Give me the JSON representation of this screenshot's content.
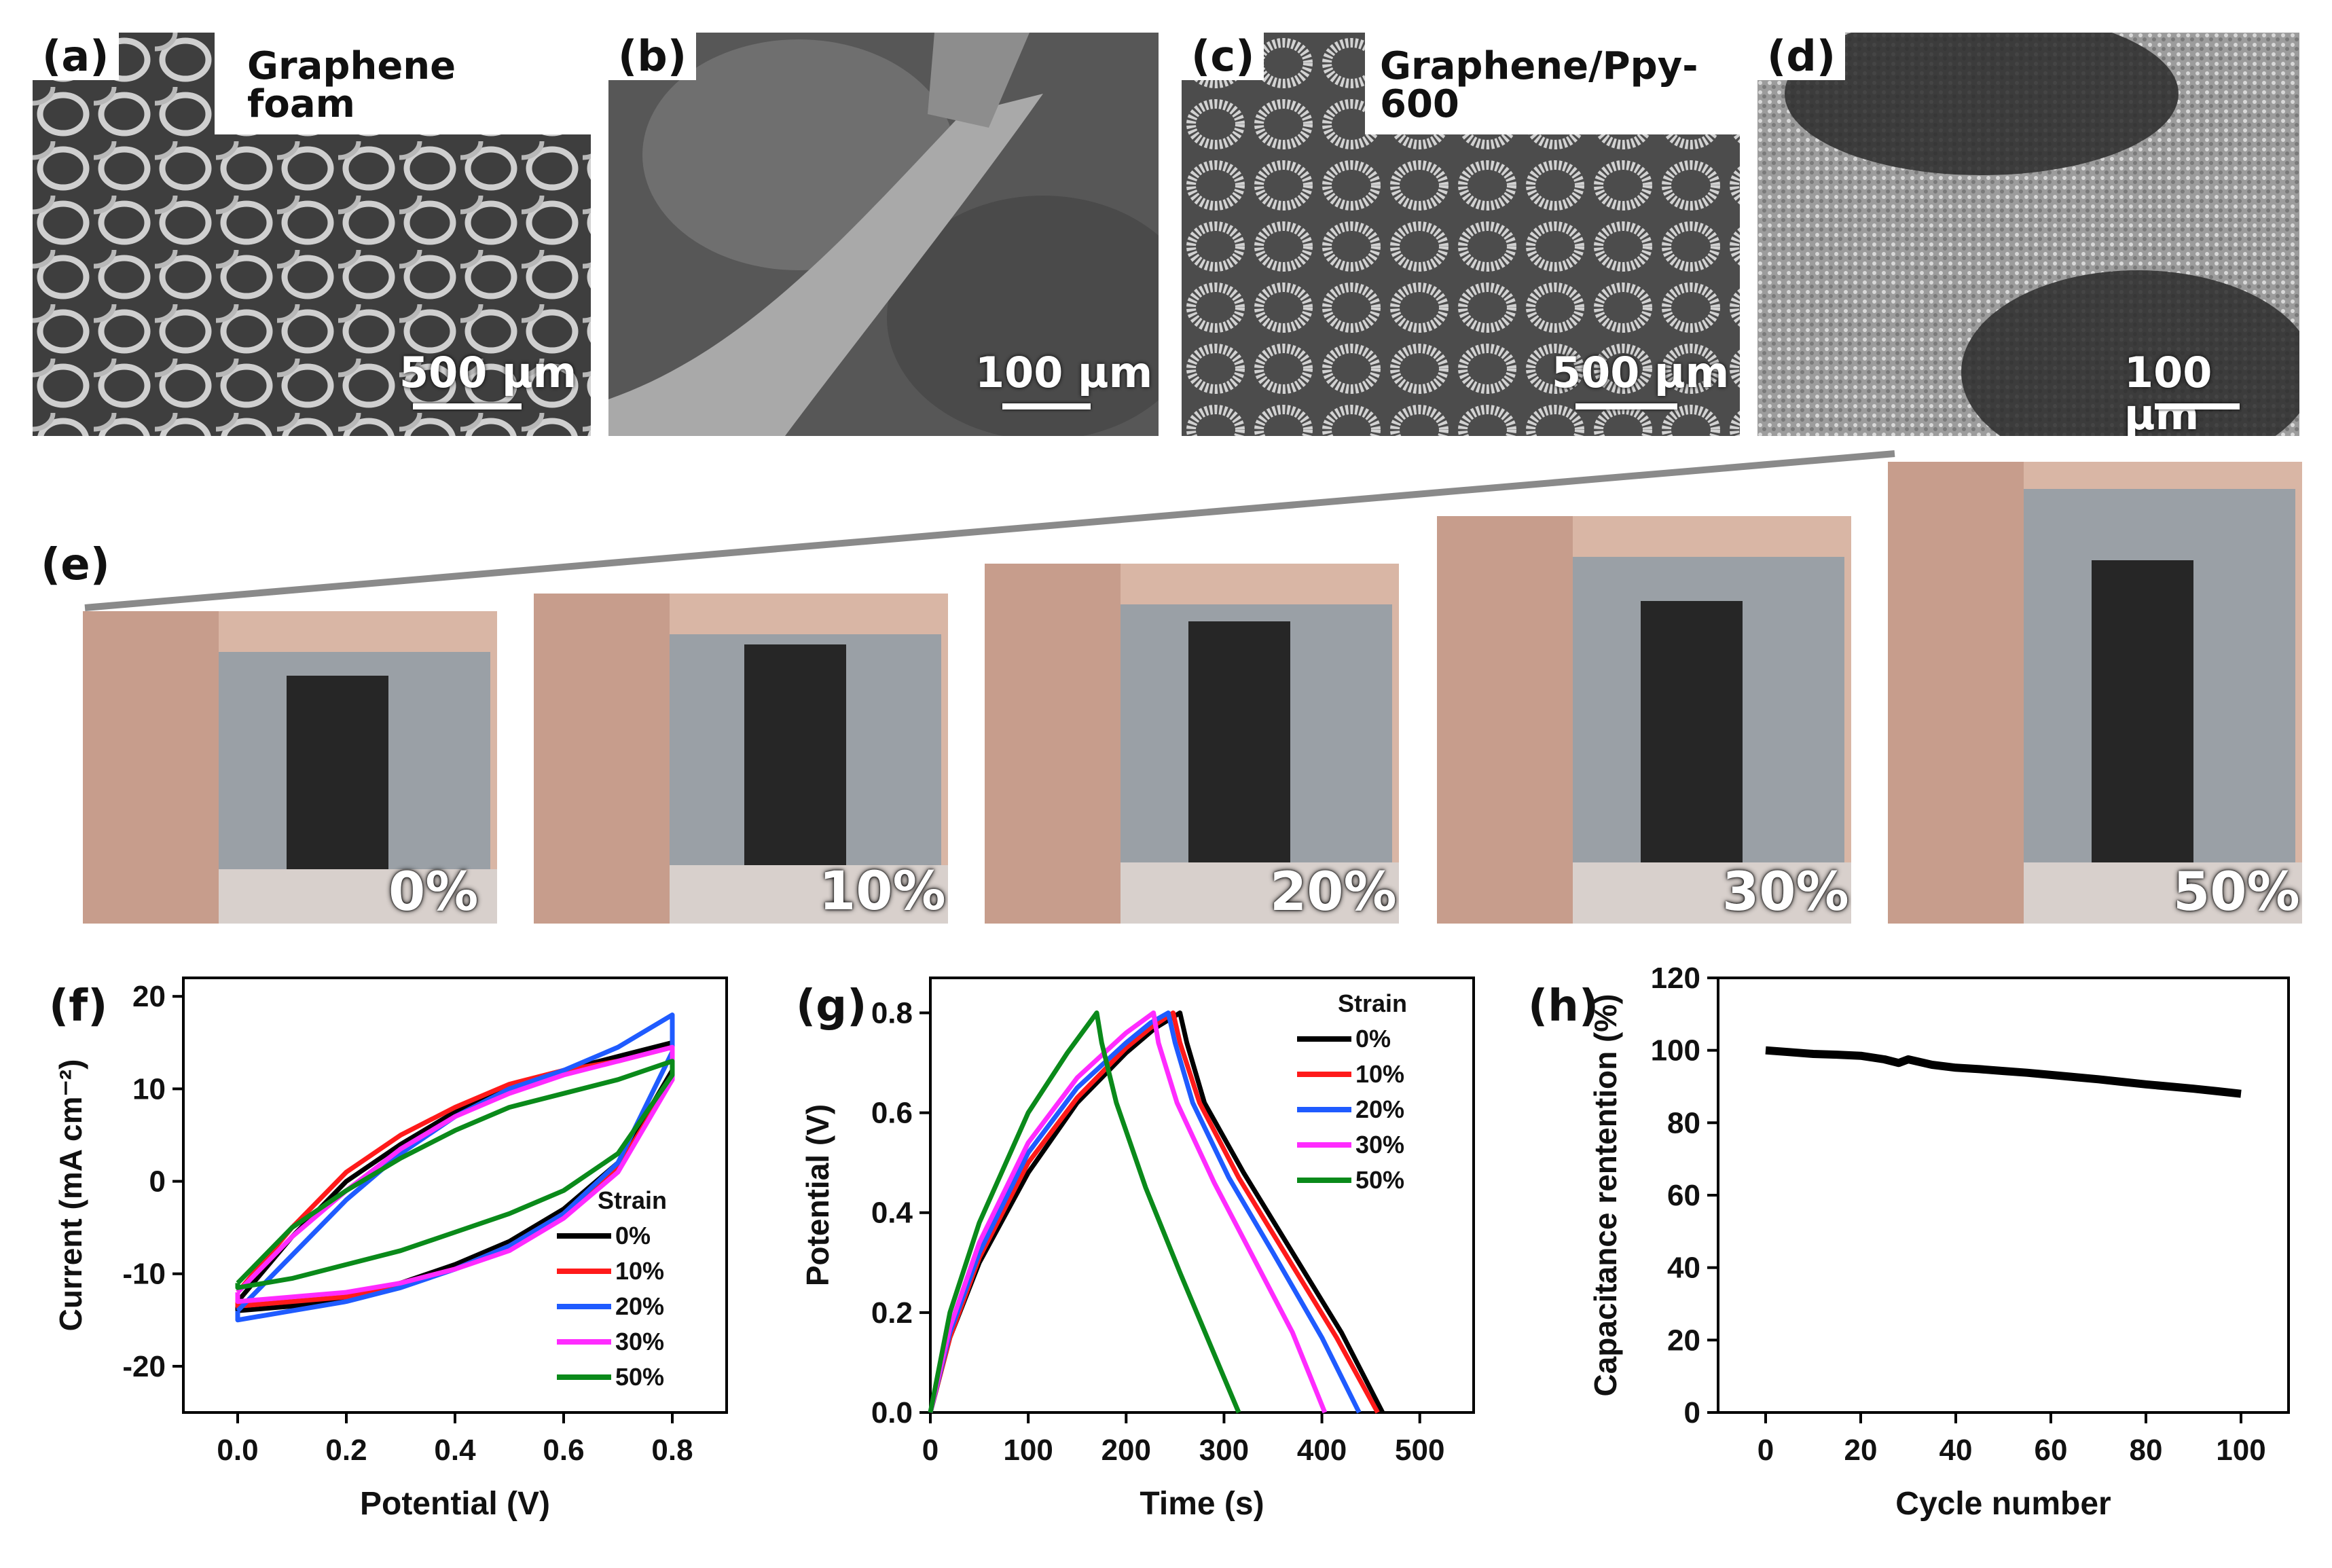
{
  "figure": {
    "panels": {
      "a": {
        "label": "(a)",
        "title": "Graphene foam",
        "scale": "500 μm"
      },
      "b": {
        "label": "(b)",
        "scale": "100 μm"
      },
      "c": {
        "label": "(c)",
        "title": "Graphene/Ppy-600",
        "scale": "500 μm"
      },
      "d": {
        "label": "(d)",
        "scale": "100 μm"
      },
      "e": {
        "label": "(e)",
        "strains": [
          "0%",
          "10%",
          "20%",
          "30%",
          "50%"
        ]
      },
      "f": {
        "label": "(f)"
      },
      "g": {
        "label": "(g)"
      },
      "h": {
        "label": "(h)"
      }
    }
  },
  "colors": {
    "s0": "#000000",
    "s10": "#ff1a1a",
    "s20": "#1f5bff",
    "s30": "#ff2bff",
    "s50": "#0a8a1a"
  },
  "chart_data": [
    {
      "id": "f",
      "type": "line",
      "xlabel": "Potential (V)",
      "ylabel": "Current (mA cm⁻²)",
      "xlim": [
        -0.1,
        0.9
      ],
      "ylim": [
        -25,
        22
      ],
      "xticks": [
        0.0,
        0.2,
        0.4,
        0.6,
        0.8
      ],
      "xtick_labels": [
        "0.0",
        "0.2",
        "0.4",
        "0.6",
        "0.8"
      ],
      "yticks": [
        -20,
        -10,
        0,
        10,
        20
      ],
      "ytick_labels": [
        "-20",
        "-10",
        "0",
        "10",
        "20"
      ],
      "legend_title": "Strain",
      "legend_position": "bottom-right",
      "series": [
        {
          "name": "0%",
          "color_key": "s0",
          "x": [
            0.0,
            0.1,
            0.2,
            0.3,
            0.4,
            0.5,
            0.6,
            0.7,
            0.8,
            0.8,
            0.7,
            0.6,
            0.5,
            0.4,
            0.3,
            0.2,
            0.1,
            0.0,
            0.0
          ],
          "y": [
            -13,
            -6,
            0,
            4,
            7.5,
            10,
            12,
            13.5,
            15,
            12,
            2,
            -3,
            -6.5,
            -9,
            -11,
            -12.5,
            -13.5,
            -14,
            -13
          ]
        },
        {
          "name": "10%",
          "color_key": "s10",
          "x": [
            0.0,
            0.1,
            0.2,
            0.3,
            0.4,
            0.5,
            0.6,
            0.7,
            0.8,
            0.8,
            0.7,
            0.6,
            0.5,
            0.4,
            0.3,
            0.2,
            0.1,
            0.0,
            0.0
          ],
          "y": [
            -12,
            -5,
            1,
            5,
            8,
            10.5,
            12,
            13,
            14.5,
            11,
            1.5,
            -3.5,
            -7,
            -9.5,
            -11,
            -12.5,
            -13,
            -13.5,
            -12
          ]
        },
        {
          "name": "20%",
          "color_key": "s20",
          "x": [
            0.0,
            0.1,
            0.2,
            0.3,
            0.4,
            0.5,
            0.6,
            0.7,
            0.8,
            0.8,
            0.7,
            0.6,
            0.5,
            0.4,
            0.3,
            0.2,
            0.1,
            0.0,
            0.0
          ],
          "y": [
            -14,
            -8,
            -2,
            3,
            7,
            10,
            12,
            14.5,
            18,
            14,
            2,
            -3.5,
            -7,
            -9.5,
            -11.5,
            -13,
            -14,
            -15,
            -14
          ]
        },
        {
          "name": "30%",
          "color_key": "s30",
          "x": [
            0.0,
            0.1,
            0.2,
            0.3,
            0.4,
            0.5,
            0.6,
            0.7,
            0.8,
            0.8,
            0.7,
            0.6,
            0.5,
            0.4,
            0.3,
            0.2,
            0.1,
            0.0,
            0.0
          ],
          "y": [
            -12,
            -6,
            -1,
            3.5,
            7,
            9.5,
            11.5,
            13,
            14.5,
            11,
            1,
            -4,
            -7.5,
            -9.5,
            -11,
            -12,
            -12.5,
            -13,
            -12
          ]
        },
        {
          "name": "50%",
          "color_key": "s50",
          "x": [
            0.0,
            0.1,
            0.2,
            0.3,
            0.4,
            0.5,
            0.6,
            0.7,
            0.8,
            0.8,
            0.7,
            0.6,
            0.5,
            0.4,
            0.3,
            0.2,
            0.1,
            0.0,
            0.0
          ],
          "y": [
            -11,
            -5,
            -1,
            2.5,
            5.5,
            8,
            9.5,
            11,
            13,
            11.5,
            3,
            -1,
            -3.5,
            -5.5,
            -7.5,
            -9,
            -10.5,
            -11.5,
            -11
          ]
        }
      ]
    },
    {
      "id": "g",
      "type": "line",
      "xlabel": "Time (s)",
      "ylabel": "Potential (V)",
      "xlim": [
        0,
        555
      ],
      "ylim": [
        0,
        0.87
      ],
      "xticks": [
        0,
        100,
        200,
        300,
        400,
        500
      ],
      "xtick_labels": [
        "0",
        "100",
        "200",
        "300",
        "400",
        "500"
      ],
      "yticks": [
        0.0,
        0.2,
        0.4,
        0.6,
        0.8
      ],
      "ytick_labels": [
        "0.0",
        "0.2",
        "0.4",
        "0.6",
        "0.8"
      ],
      "legend_title": "Strain",
      "legend_position": "top-right",
      "series": [
        {
          "name": "0%",
          "color_key": "s0",
          "x": [
            0,
            20,
            50,
            100,
            150,
            200,
            230,
            255,
            262,
            280,
            320,
            370,
            420,
            462
          ],
          "y": [
            0,
            0.15,
            0.3,
            0.48,
            0.62,
            0.72,
            0.77,
            0.8,
            0.74,
            0.62,
            0.48,
            0.32,
            0.16,
            0
          ]
        },
        {
          "name": "10%",
          "color_key": "s10",
          "x": [
            0,
            20,
            50,
            100,
            150,
            200,
            225,
            248,
            255,
            275,
            315,
            365,
            415,
            457
          ],
          "y": [
            0,
            0.15,
            0.31,
            0.5,
            0.63,
            0.73,
            0.77,
            0.8,
            0.74,
            0.62,
            0.47,
            0.31,
            0.15,
            0
          ]
        },
        {
          "name": "20%",
          "color_key": "s20",
          "x": [
            0,
            20,
            50,
            100,
            150,
            200,
            225,
            243,
            250,
            268,
            305,
            350,
            400,
            438
          ],
          "y": [
            0,
            0.16,
            0.32,
            0.52,
            0.65,
            0.74,
            0.78,
            0.8,
            0.74,
            0.62,
            0.47,
            0.32,
            0.15,
            0
          ]
        },
        {
          "name": "30%",
          "color_key": "s30",
          "x": [
            0,
            20,
            50,
            100,
            150,
            200,
            228,
            233,
            252,
            290,
            330,
            370,
            403
          ],
          "y": [
            0,
            0.17,
            0.34,
            0.54,
            0.67,
            0.76,
            0.8,
            0.74,
            0.62,
            0.46,
            0.31,
            0.16,
            0
          ]
        },
        {
          "name": "50%",
          "color_key": "s50",
          "x": [
            0,
            20,
            50,
            100,
            140,
            170,
            175,
            190,
            220,
            255,
            285,
            315
          ],
          "y": [
            0,
            0.2,
            0.38,
            0.6,
            0.72,
            0.8,
            0.74,
            0.62,
            0.45,
            0.28,
            0.14,
            0
          ]
        }
      ]
    },
    {
      "id": "h",
      "type": "line",
      "xlabel": "Cycle number",
      "ylabel": "Capacitance rentention (%)",
      "xlim": [
        -10,
        110
      ],
      "ylim": [
        0,
        120
      ],
      "xticks": [
        0,
        20,
        40,
        60,
        80,
        100
      ],
      "xtick_labels": [
        "0",
        "20",
        "40",
        "60",
        "80",
        "100"
      ],
      "yticks": [
        0,
        20,
        40,
        60,
        80,
        100,
        120
      ],
      "ytick_labels": [
        "0",
        "20",
        "40",
        "60",
        "80",
        "100",
        "120"
      ],
      "series": [
        {
          "name": "",
          "color_key": "s0",
          "x": [
            0,
            5,
            10,
            15,
            20,
            25,
            28,
            30,
            35,
            40,
            45,
            50,
            55,
            60,
            65,
            70,
            75,
            80,
            85,
            90,
            95,
            100
          ],
          "y": [
            100,
            99.5,
            99,
            98.8,
            98.5,
            97.5,
            96.5,
            97.5,
            96,
            95.2,
            94.8,
            94.3,
            93.8,
            93.2,
            92.6,
            92,
            91.3,
            90.6,
            90,
            89.4,
            88.7,
            88
          ]
        }
      ]
    }
  ]
}
